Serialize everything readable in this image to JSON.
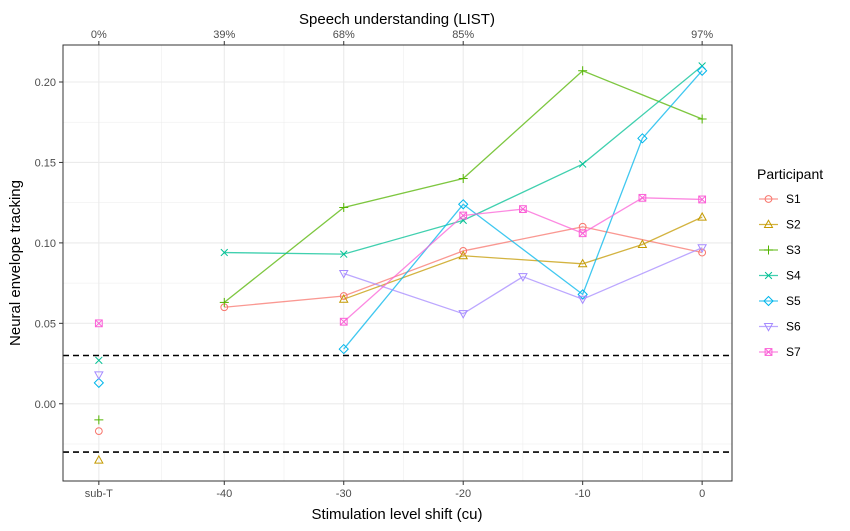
{
  "chart_data": {
    "type": "line",
    "title": "",
    "xlabel": "Stimulation level shift (cu)",
    "ylabel": "Neural envelope tracking",
    "top_axis_label": "Speech understanding (LIST)",
    "x_tick_labels": [
      {
        "x": "sub-T",
        "label": "sub-T"
      },
      {
        "x": -40,
        "label": "-40"
      },
      {
        "x": -30,
        "label": "-30"
      },
      {
        "x": -20,
        "label": "-20"
      },
      {
        "x": -10,
        "label": "-10"
      },
      {
        "x": 0,
        "label": "0"
      }
    ],
    "top_tick_labels": [
      {
        "x": "sub-T",
        "label": "0%"
      },
      {
        "x": -40,
        "label": "39%"
      },
      {
        "x": -30,
        "label": "68%"
      },
      {
        "x": -20,
        "label": "85%"
      },
      {
        "x": 0,
        "label": "97%"
      }
    ],
    "y_ticks": [
      {
        "value": 0.0,
        "label": "0.00"
      },
      {
        "value": 0.05,
        "label": "0.05"
      },
      {
        "value": 0.1,
        "label": "0.10"
      },
      {
        "value": 0.15,
        "label": "0.15"
      },
      {
        "value": 0.2,
        "label": "0.20"
      }
    ],
    "ylim": [
      -0.048,
      0.223
    ],
    "xlim_shift": [
      -53.5,
      2.5
    ],
    "grid": true,
    "threshold_lines": [
      0.03,
      -0.03
    ],
    "legend": {
      "title": "Participant",
      "position": "right"
    },
    "series": [
      {
        "name": "S1",
        "color": "#F8766D",
        "marker": "circle",
        "subT": -0.017,
        "points": [
          {
            "x": -40,
            "y": 0.06
          },
          {
            "x": -30,
            "y": 0.067
          },
          {
            "x": -20,
            "y": 0.095
          },
          {
            "x": -10,
            "y": 0.11
          },
          {
            "x": 0,
            "y": 0.094
          }
        ]
      },
      {
        "name": "S2",
        "color": "#C49A00",
        "marker": "triangle-up",
        "subT": -0.035,
        "points": [
          {
            "x": -30,
            "y": 0.065
          },
          {
            "x": -20,
            "y": 0.092
          },
          {
            "x": -10,
            "y": 0.087
          },
          {
            "x": -5,
            "y": 0.099
          },
          {
            "x": 0,
            "y": 0.116
          }
        ]
      },
      {
        "name": "S3",
        "color": "#53B400",
        "marker": "plus",
        "subT": -0.01,
        "points": [
          {
            "x": -40,
            "y": 0.063
          },
          {
            "x": -30,
            "y": 0.122
          },
          {
            "x": -20,
            "y": 0.14
          },
          {
            "x": -10,
            "y": 0.207
          },
          {
            "x": 0,
            "y": 0.177
          }
        ]
      },
      {
        "name": "S4",
        "color": "#00C094",
        "marker": "cross",
        "subT": 0.027,
        "points": [
          {
            "x": -40,
            "y": 0.094
          },
          {
            "x": -30,
            "y": 0.093
          },
          {
            "x": -20,
            "y": 0.114
          },
          {
            "x": -10,
            "y": 0.149
          },
          {
            "x": 0,
            "y": 0.21
          }
        ]
      },
      {
        "name": "S5",
        "color": "#00B6EB",
        "marker": "diamond",
        "subT": 0.013,
        "points": [
          {
            "x": -30,
            "y": 0.034
          },
          {
            "x": -20,
            "y": 0.124
          },
          {
            "x": -10,
            "y": 0.068
          },
          {
            "x": -5,
            "y": 0.165
          },
          {
            "x": 0,
            "y": 0.207
          }
        ]
      },
      {
        "name": "S6",
        "color": "#A58AFF",
        "marker": "triangle-down",
        "subT": 0.018,
        "points": [
          {
            "x": -30,
            "y": 0.081
          },
          {
            "x": -20,
            "y": 0.056
          },
          {
            "x": -15,
            "y": 0.079
          },
          {
            "x": -10,
            "y": 0.065
          },
          {
            "x": 0,
            "y": 0.097
          }
        ]
      },
      {
        "name": "S7",
        "color": "#FB61D7",
        "marker": "square-cross",
        "subT": 0.05,
        "points": [
          {
            "x": -30,
            "y": 0.051
          },
          {
            "x": -20,
            "y": 0.117
          },
          {
            "x": -15,
            "y": 0.121
          },
          {
            "x": -10,
            "y": 0.106
          },
          {
            "x": -5,
            "y": 0.128
          },
          {
            "x": 0,
            "y": 0.127
          }
        ]
      }
    ]
  }
}
